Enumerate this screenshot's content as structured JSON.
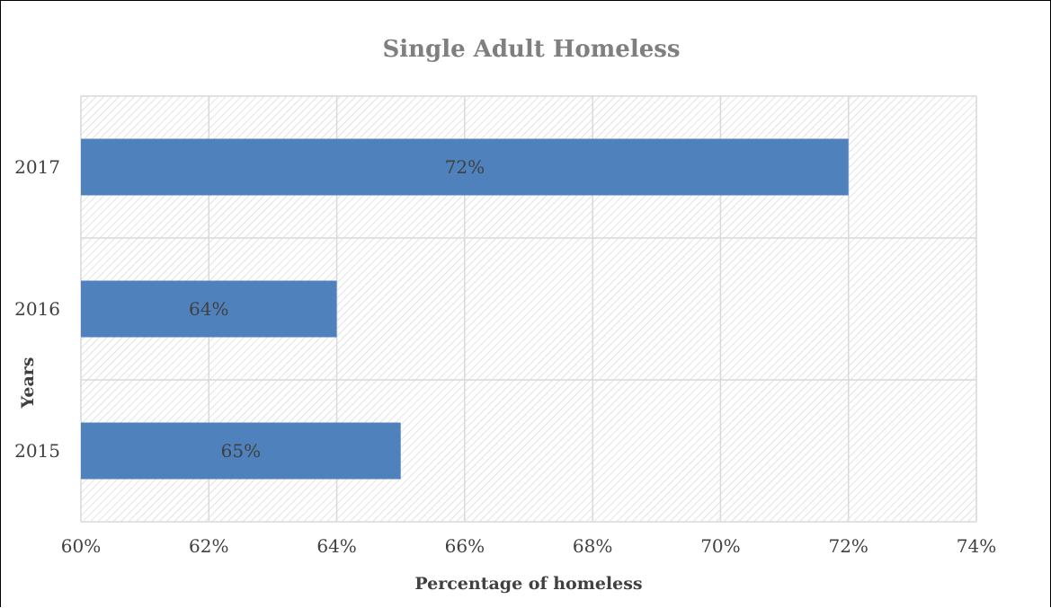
{
  "chart_data": {
    "type": "bar",
    "orientation": "horizontal",
    "title": "Single Adult Homeless",
    "xlabel": "Percentage of homeless",
    "ylabel": "Years",
    "categories": [
      "2015",
      "2016",
      "2017"
    ],
    "values": [
      65,
      64,
      72
    ],
    "data_labels": [
      "65%",
      "64%",
      "72%"
    ],
    "xlim": [
      60,
      74
    ],
    "x_ticks": [
      60,
      62,
      64,
      66,
      68,
      70,
      72,
      74
    ],
    "x_tick_labels": [
      "60%",
      "62%",
      "64%",
      "66%",
      "68%",
      "70%",
      "72%",
      "74%"
    ],
    "grid": true,
    "legend": "none",
    "colors": {
      "bar": "#4f81bd",
      "title": "#7f7f7f",
      "text": "#404040",
      "grid": "#d9d9d9",
      "hatch": "#d0d0d0"
    }
  }
}
